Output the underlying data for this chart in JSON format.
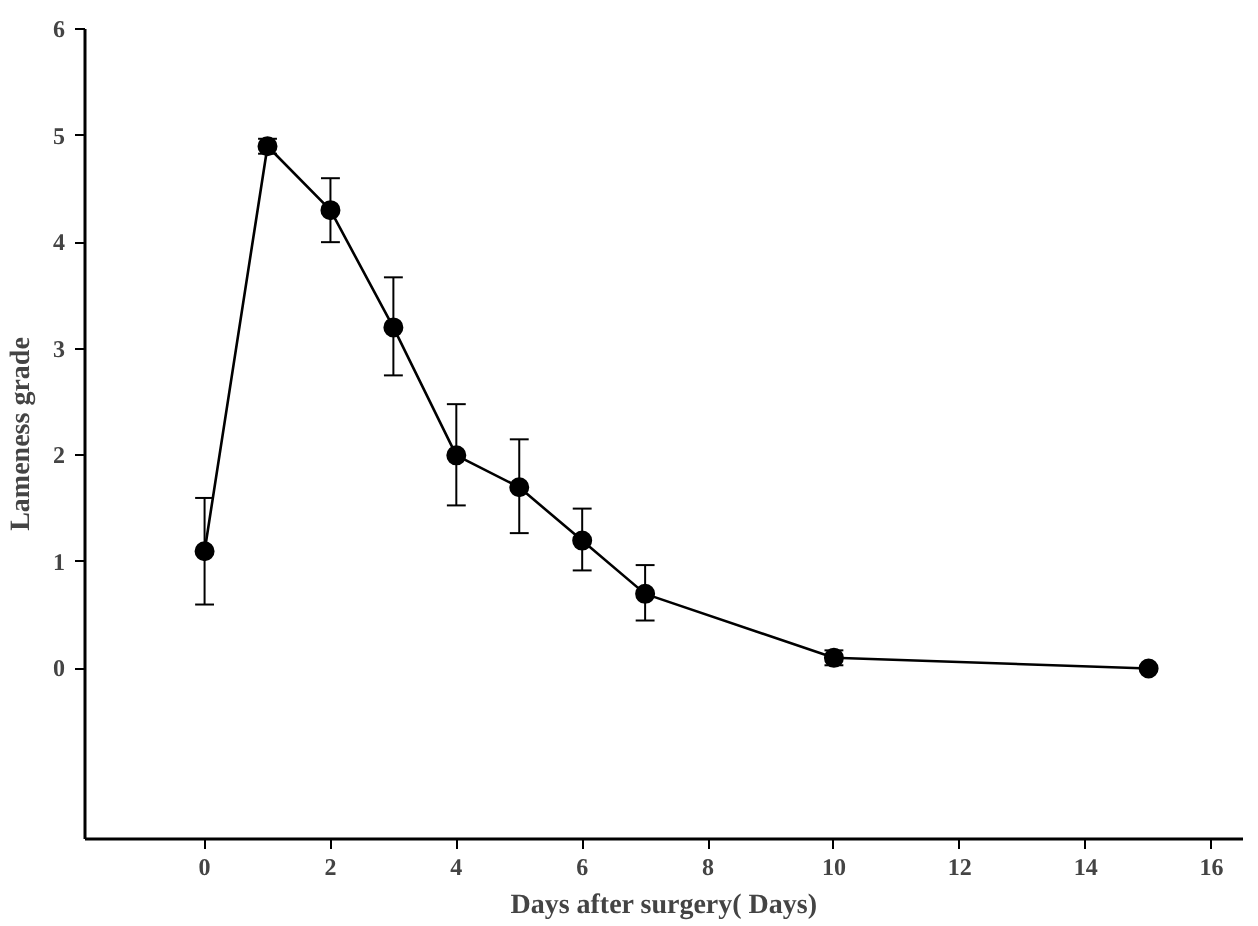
{
  "chart_data": {
    "type": "line",
    "xlabel": "Days after surgery( Days)",
    "ylabel": "Lameness grade",
    "x": [
      0,
      1,
      2,
      3,
      4,
      5,
      6,
      7,
      10,
      15
    ],
    "values": [
      1.1,
      4.9,
      4.3,
      3.2,
      2.0,
      1.7,
      1.2,
      0.7,
      0.1,
      0.0
    ],
    "errors": [
      [
        0.6,
        1.6
      ],
      [
        4.83,
        4.97
      ],
      [
        4.0,
        4.6
      ],
      [
        2.75,
        3.67
      ],
      [
        1.53,
        2.48
      ],
      [
        1.27,
        2.15
      ],
      [
        0.92,
        1.5
      ],
      [
        0.45,
        0.97
      ],
      [
        0.03,
        0.17
      ],
      null
    ],
    "color": "#000000",
    "marker": "circle",
    "line_style": "solid",
    "grid": false,
    "xlim": [
      -1.9,
      16.5
    ],
    "ylim": [
      -1.6,
      6
    ],
    "xticks": [
      0,
      2,
      4,
      6,
      8,
      10,
      12,
      14,
      16
    ],
    "yticks": [
      0,
      1,
      2,
      3,
      4,
      5,
      6
    ]
  }
}
